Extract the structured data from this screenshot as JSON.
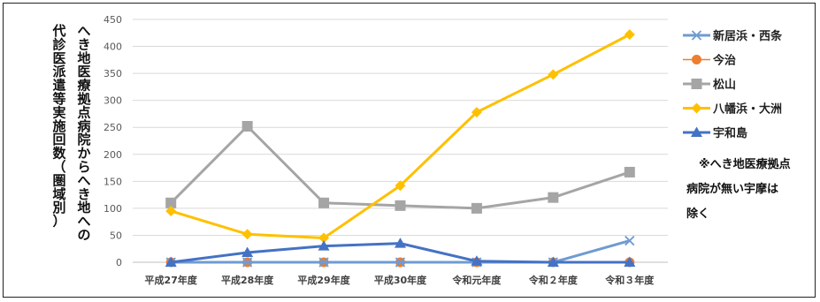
{
  "chart_data": {
    "type": "line",
    "title": "",
    "ylabel_lines": [
      "へき地医療拠点病院からへき地への",
      "代診医派遣等実施回数（圏域別）"
    ],
    "categories": [
      "平成27年度",
      "平成28年度",
      "平成29年度",
      "平成30年度",
      "令和元年度",
      "令和２年度",
      "令和３年度"
    ],
    "ylim": [
      0,
      450
    ],
    "yticks": [
      "0",
      "50",
      "100",
      "150",
      "200",
      "250",
      "300",
      "350",
      "400",
      "450"
    ],
    "grid": true,
    "legend_position": "right",
    "series": [
      {
        "name": "新居浜・西条",
        "color": "#6f9bd1",
        "marker": "x",
        "values": [
          0,
          0,
          0,
          0,
          0,
          0,
          40
        ]
      },
      {
        "name": "今治",
        "color": "#ed7d31",
        "marker": "circle",
        "values": [
          0,
          0,
          0,
          0,
          0,
          0,
          0
        ]
      },
      {
        "name": "松山",
        "color": "#a5a5a5",
        "marker": "square",
        "values": [
          110,
          252,
          110,
          105,
          100,
          120,
          167
        ]
      },
      {
        "name": "八幡浜・大洲",
        "color": "#ffc000",
        "marker": "diamond",
        "values": [
          95,
          52,
          45,
          142,
          278,
          348,
          422
        ]
      },
      {
        "name": "宇和島",
        "color": "#4472c4",
        "marker": "triangle",
        "values": [
          0,
          18,
          30,
          35,
          2,
          0,
          0
        ]
      }
    ],
    "note_lines": [
      "※へき地医療拠点",
      "病院が無い宇摩は",
      "除く"
    ]
  }
}
